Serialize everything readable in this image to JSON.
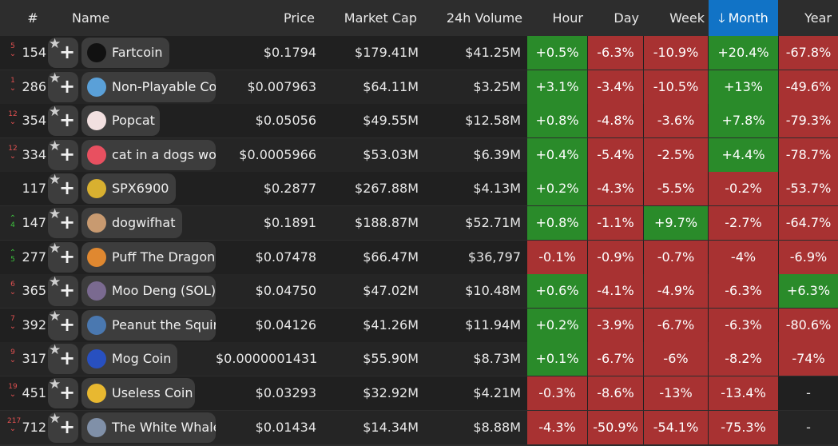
{
  "headers": {
    "rank": "#",
    "name": "Name",
    "price": "Price",
    "market_cap": "Market Cap",
    "volume": "24h Volume",
    "hour": "Hour",
    "day": "Day",
    "week": "Week",
    "month": "Month",
    "year": "Year"
  },
  "colors": {
    "green": "#2a8b2a",
    "red": "#a83232",
    "accent": "#1173c6"
  },
  "rows": [
    {
      "chg": "5",
      "dir": "down",
      "rank": "154",
      "name": "Fartcoin",
      "icon_color": "#111111",
      "price": "$0.1794",
      "mcap": "$179.41M",
      "vol": "$41.25M",
      "hour": "+0.5%",
      "hc": "g",
      "day": "-6.3%",
      "dc": "r",
      "week": "-10.9%",
      "wc": "r",
      "month": "+20.4%",
      "mc": "g",
      "year": "-67.8%",
      "yc": "r"
    },
    {
      "chg": "1",
      "dir": "down",
      "rank": "286",
      "name": "Non-Playable Co",
      "icon_color": "#5aa0d8",
      "price": "$0.007963",
      "mcap": "$64.11M",
      "vol": "$3.25M",
      "hour": "+3.1%",
      "hc": "g",
      "day": "-3.4%",
      "dc": "r",
      "week": "-10.5%",
      "wc": "r",
      "month": "+13%",
      "mc": "g",
      "year": "-49.6%",
      "yc": "r"
    },
    {
      "chg": "12",
      "dir": "down",
      "rank": "354",
      "name": "Popcat",
      "icon_color": "#f2e0e0",
      "price": "$0.05056",
      "mcap": "$49.55M",
      "vol": "$12.58M",
      "hour": "+0.8%",
      "hc": "g",
      "day": "-4.8%",
      "dc": "r",
      "week": "-3.6%",
      "wc": "r",
      "month": "+7.8%",
      "mc": "g",
      "year": "-79.3%",
      "yc": "r"
    },
    {
      "chg": "12",
      "dir": "down",
      "rank": "334",
      "name": "cat in a dogs wo",
      "icon_color": "#e85060",
      "price": "$0.0005966",
      "mcap": "$53.03M",
      "vol": "$6.39M",
      "hour": "+0.4%",
      "hc": "g",
      "day": "-5.4%",
      "dc": "r",
      "week": "-2.5%",
      "wc": "r",
      "month": "+4.4%",
      "mc": "g",
      "year": "-78.7%",
      "yc": "r"
    },
    {
      "chg": "",
      "dir": "",
      "rank": "117",
      "name": "SPX6900",
      "icon_color": "#d8b030",
      "price": "$0.2877",
      "mcap": "$267.88M",
      "vol": "$4.13M",
      "hour": "+0.2%",
      "hc": "g",
      "day": "-4.3%",
      "dc": "r",
      "week": "-5.5%",
      "wc": "r",
      "month": "-0.2%",
      "mc": "r",
      "year": "-53.7%",
      "yc": "r"
    },
    {
      "chg": "4",
      "dir": "up",
      "rank": "147",
      "name": "dogwifhat",
      "icon_color": "#c89a70",
      "price": "$0.1891",
      "mcap": "$188.87M",
      "vol": "$52.71M",
      "hour": "+0.8%",
      "hc": "g",
      "day": "-1.1%",
      "dc": "r",
      "week": "+9.7%",
      "wc": "g",
      "month": "-2.7%",
      "mc": "r",
      "year": "-64.7%",
      "yc": "r"
    },
    {
      "chg": "5",
      "dir": "up",
      "rank": "277",
      "name": "Puff The Dragon",
      "icon_color": "#e08830",
      "price": "$0.07478",
      "mcap": "$66.47M",
      "vol": "$36,797",
      "hour": "-0.1%",
      "hc": "r",
      "day": "-0.9%",
      "dc": "r",
      "week": "-0.7%",
      "wc": "r",
      "month": "-4%",
      "mc": "r",
      "year": "-6.9%",
      "yc": "r"
    },
    {
      "chg": "6",
      "dir": "down",
      "rank": "365",
      "name": "Moo Deng (SOL)",
      "icon_color": "#7a6a90",
      "price": "$0.04750",
      "mcap": "$47.02M",
      "vol": "$10.48M",
      "hour": "+0.6%",
      "hc": "g",
      "day": "-4.1%",
      "dc": "r",
      "week": "-4.9%",
      "wc": "r",
      "month": "-6.3%",
      "mc": "r",
      "year": "+6.3%",
      "yc": "g"
    },
    {
      "chg": "7",
      "dir": "down",
      "rank": "392",
      "name": "Peanut the Squir",
      "icon_color": "#4a78b0",
      "price": "$0.04126",
      "mcap": "$41.26M",
      "vol": "$11.94M",
      "hour": "+0.2%",
      "hc": "g",
      "day": "-3.9%",
      "dc": "r",
      "week": "-6.7%",
      "wc": "r",
      "month": "-6.3%",
      "mc": "r",
      "year": "-80.6%",
      "yc": "r"
    },
    {
      "chg": "9",
      "dir": "down",
      "rank": "317",
      "name": "Mog Coin",
      "icon_color": "#2850c0",
      "price": "$0.0000001431",
      "mcap": "$55.90M",
      "vol": "$8.73M",
      "hour": "+0.1%",
      "hc": "g",
      "day": "-6.7%",
      "dc": "r",
      "week": "-6%",
      "wc": "r",
      "month": "-8.2%",
      "mc": "r",
      "year": "-74%",
      "yc": "r"
    },
    {
      "chg": "19",
      "dir": "down",
      "rank": "451",
      "name": "Useless Coin",
      "icon_color": "#e8b830",
      "price": "$0.03293",
      "mcap": "$32.92M",
      "vol": "$4.21M",
      "hour": "-0.3%",
      "hc": "r",
      "day": "-8.6%",
      "dc": "r",
      "week": "-13%",
      "wc": "r",
      "month": "-13.4%",
      "mc": "r",
      "year": "-",
      "yc": "n"
    },
    {
      "chg": "217",
      "dir": "down",
      "rank": "712",
      "name": "The White Whale",
      "icon_color": "#8090a8",
      "price": "$0.01434",
      "mcap": "$14.34M",
      "vol": "$8.88M",
      "hour": "-4.3%",
      "hc": "r",
      "day": "-50.9%",
      "dc": "r",
      "week": "-54.1%",
      "wc": "r",
      "month": "-75.3%",
      "mc": "r",
      "year": "-",
      "yc": "n"
    }
  ]
}
